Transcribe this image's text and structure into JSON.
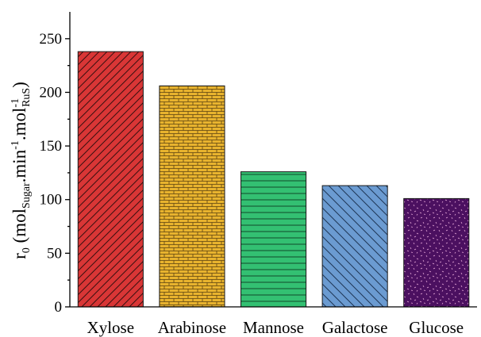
{
  "chart_data": {
    "type": "bar",
    "categories": [
      "Xylose",
      "Arabinose",
      "Mannose",
      "Galactose",
      "Glucose"
    ],
    "values": [
      238,
      206,
      126,
      113,
      101
    ],
    "ylabel": {
      "base": "r",
      "base_sub": "0",
      "open": " (mol",
      "sub1": "Sugar",
      "mid1": ".min",
      "sup1": "-1",
      "mid2": ".mol",
      "sup2": "-1",
      "sub2": "RuS",
      "close": ")"
    },
    "xlabel": "",
    "ylim": [
      0,
      275
    ],
    "yticks": [
      0,
      50,
      100,
      150,
      200,
      250
    ],
    "grid": false,
    "colors": [
      "#d93636",
      "#e8b32e",
      "#33c072",
      "#6b9bd1",
      "#4b1060"
    ],
    "patterns": [
      "diagonal-forward",
      "brick",
      "horizontal",
      "diagonal-backward",
      "speckle"
    ]
  }
}
